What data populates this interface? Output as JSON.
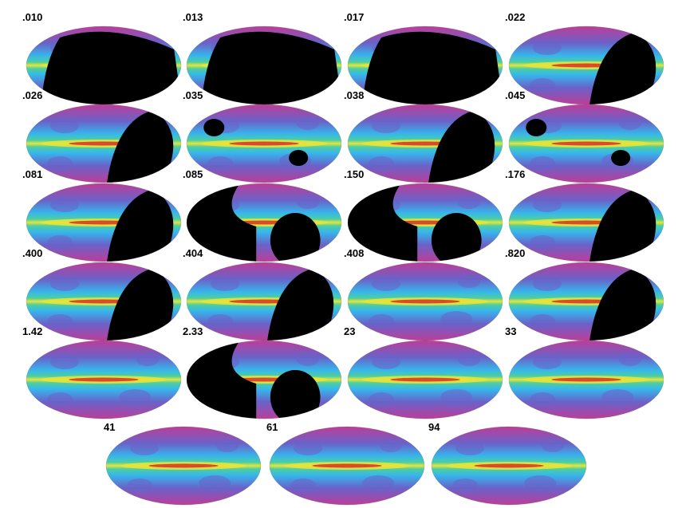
{
  "colors": {
    "background": "#ffffff",
    "masked": "#000000",
    "cold": "#c03c96",
    "low": "#6a62c8",
    "mid": "#36b6ec",
    "warm": "#4fcf9e",
    "high": "#e8e43a",
    "hot": "#d83a26"
  },
  "maps": [
    {
      "label": ".010",
      "mask": "heavy"
    },
    {
      "label": ".013",
      "mask": "heavy"
    },
    {
      "label": ".017",
      "mask": "heavy"
    },
    {
      "label": ".022",
      "mask": "right"
    },
    {
      "label": ".026",
      "mask": "right"
    },
    {
      "label": ".035",
      "mask": "spots"
    },
    {
      "label": ".038",
      "mask": "right"
    },
    {
      "label": ".045",
      "mask": "spots"
    },
    {
      "label": ".081",
      "mask": "right"
    },
    {
      "label": ".085",
      "mask": "left-right"
    },
    {
      "label": ".150",
      "mask": "left-right"
    },
    {
      "label": ".176",
      "mask": "right"
    },
    {
      "label": ".400",
      "mask": "right"
    },
    {
      "label": ".404",
      "mask": "right"
    },
    {
      "label": ".408",
      "mask": "none"
    },
    {
      "label": ".820",
      "mask": "right"
    },
    {
      "label": "1.42",
      "mask": "none"
    },
    {
      "label": "2.33",
      "mask": "left-right"
    },
    {
      "label": "23",
      "mask": "none"
    },
    {
      "label": "33",
      "mask": "none"
    },
    {
      "label": "41",
      "mask": "none"
    },
    {
      "label": "61",
      "mask": "none"
    },
    {
      "label": "94",
      "mask": "none"
    }
  ]
}
